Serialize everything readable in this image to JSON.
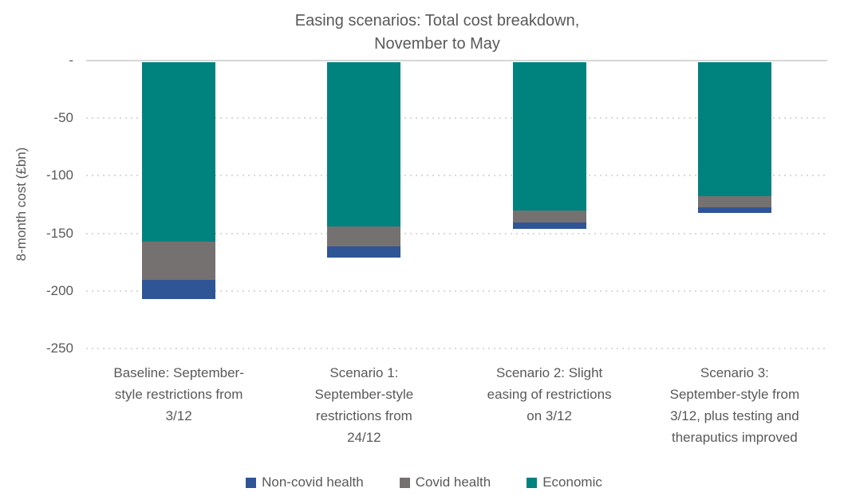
{
  "header": {
    "title": "Easing scenarios: Total cost breakdown,\nNovember to May"
  },
  "chart_data": {
    "type": "bar",
    "stacked": true,
    "orientation": "vertical-negative",
    "title": "Easing scenarios: Total cost breakdown, November to May",
    "ylabel": "8-month cost (£bn)",
    "ylim": [
      -250,
      0
    ],
    "yticks": [
      {
        "label": "-",
        "value": 0
      },
      {
        "label": "-50",
        "value": -50
      },
      {
        "label": "-100",
        "value": -100
      },
      {
        "label": "-150",
        "value": -150
      },
      {
        "label": "-200",
        "value": -200
      },
      {
        "label": "-250",
        "value": -250
      }
    ],
    "grid": "dotted-horizontal",
    "legend_position": "bottom-center",
    "categories": [
      "Baseline: September-\nstyle restrictions from\n3/12",
      "Scenario 1:\nSeptember-style\nrestrictions from\n24/12",
      "Scenario 2: Slight\neasing of restrictions\non 3/12",
      "Scenario 3:\nSeptember-style from\n3/12, plus testing and\ntheraputics improved"
    ],
    "series": [
      {
        "name": "Non-covid health",
        "color": "#2F5597",
        "values": [
          -17,
          -10,
          -6,
          -5
        ]
      },
      {
        "name": "Covid health",
        "color": "#767171",
        "values": [
          -33,
          -17,
          -10,
          -10
        ]
      },
      {
        "name": "Economic",
        "color": "#00827E",
        "values": [
          -156,
          -143,
          -129,
          -116
        ]
      }
    ],
    "stack_order_top_to_bottom": [
      "Economic",
      "Covid health",
      "Non-covid health"
    ],
    "totals": [
      -206,
      -170,
      -145,
      -131
    ]
  },
  "style": {
    "text_color": "#595959",
    "gridline_color": "#D9D9D9",
    "axis_line_color": "#D6D6D6",
    "background": "#FFFFFF"
  }
}
